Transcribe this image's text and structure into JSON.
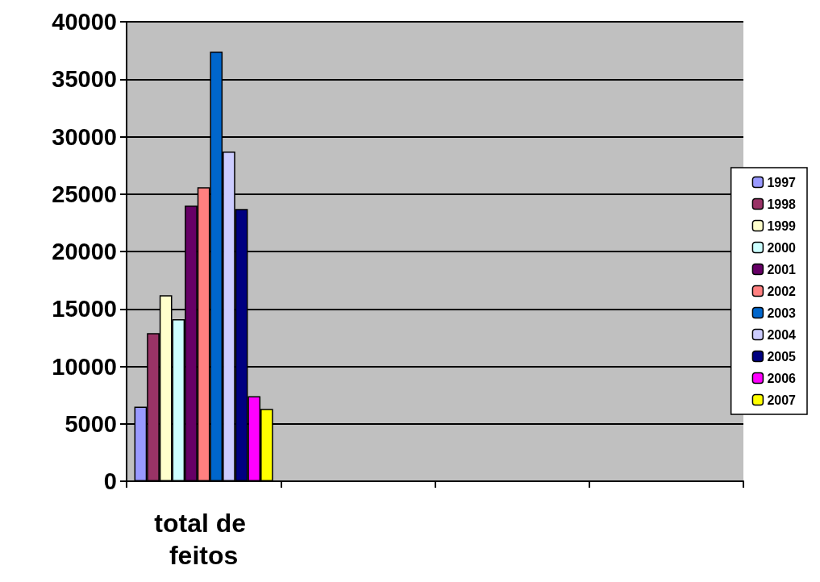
{
  "chart_data": {
    "type": "bar",
    "categories": [
      "total de feitos",
      null,
      null,
      null
    ],
    "series": [
      {
        "name": "1997",
        "color": "#9999ff",
        "values": [
          6500,
          null,
          null,
          null
        ]
      },
      {
        "name": "1998",
        "color": "#993366",
        "values": [
          12900,
          null,
          null,
          null
        ]
      },
      {
        "name": "1999",
        "color": "#ffffcc",
        "values": [
          16200,
          null,
          null,
          null
        ]
      },
      {
        "name": "2000",
        "color": "#ccffff",
        "values": [
          14100,
          null,
          null,
          null
        ]
      },
      {
        "name": "2001",
        "color": "#660066",
        "values": [
          24000,
          null,
          null,
          null
        ]
      },
      {
        "name": "2002",
        "color": "#ff8080",
        "values": [
          25600,
          null,
          null,
          null
        ]
      },
      {
        "name": "2003",
        "color": "#0066cc",
        "values": [
          37400,
          null,
          null,
          null
        ]
      },
      {
        "name": "2004",
        "color": "#ccccff",
        "values": [
          28700,
          null,
          null,
          null
        ]
      },
      {
        "name": "2005",
        "color": "#000080",
        "values": [
          23700,
          null,
          null,
          null
        ]
      },
      {
        "name": "2006",
        "color": "#ff00ff",
        "values": [
          7400,
          null,
          null,
          null
        ]
      },
      {
        "name": "2007",
        "color": "#ffff00",
        "values": [
          6300,
          null,
          null,
          null
        ]
      }
    ],
    "ylim": [
      0,
      40000
    ],
    "yticks": [
      0,
      5000,
      10000,
      15000,
      20000,
      25000,
      30000,
      35000,
      40000
    ],
    "grid": "y",
    "legend": "right"
  }
}
